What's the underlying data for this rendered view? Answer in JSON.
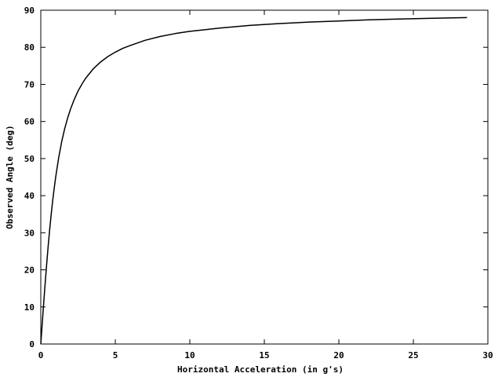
{
  "chart_data": {
    "type": "line",
    "title": "",
    "xlabel": "Horizontal Acceleration (in g's)",
    "ylabel": "Observed Angle (deg)",
    "xlim": [
      0,
      30
    ],
    "ylim": [
      0,
      90
    ],
    "xticks": [
      0,
      5,
      10,
      15,
      20,
      25,
      30
    ],
    "yticks": [
      0,
      10,
      20,
      30,
      40,
      50,
      60,
      70,
      80,
      90
    ],
    "grid": false,
    "legend": "none",
    "line_color": "#000000",
    "series": [
      {
        "x": [
          0,
          0.1,
          0.2,
          0.3,
          0.4,
          0.5,
          0.6,
          0.7,
          0.8,
          0.9,
          1.0,
          1.2,
          1.4,
          1.6,
          1.8,
          2.0,
          2.25,
          2.5,
          2.75,
          3.0,
          3.5,
          4.0,
          4.5,
          5.0,
          5.5,
          6.0,
          7.0,
          8.0,
          9.0,
          10.0,
          12.0,
          14.0,
          16.0,
          18.0,
          20.0,
          22.0,
          24.0,
          26.0,
          28.6
        ],
        "y": [
          0,
          5.7,
          11.3,
          16.7,
          21.8,
          26.6,
          31.0,
          35.0,
          38.7,
          42.0,
          45.0,
          50.2,
          54.5,
          58.0,
          60.9,
          63.4,
          66.0,
          68.2,
          70.0,
          71.6,
          74.1,
          76.0,
          77.5,
          78.7,
          79.7,
          80.5,
          81.9,
          82.9,
          83.7,
          84.3,
          85.2,
          85.9,
          86.4,
          86.8,
          87.1,
          87.4,
          87.6,
          87.8,
          88.0
        ]
      }
    ]
  }
}
